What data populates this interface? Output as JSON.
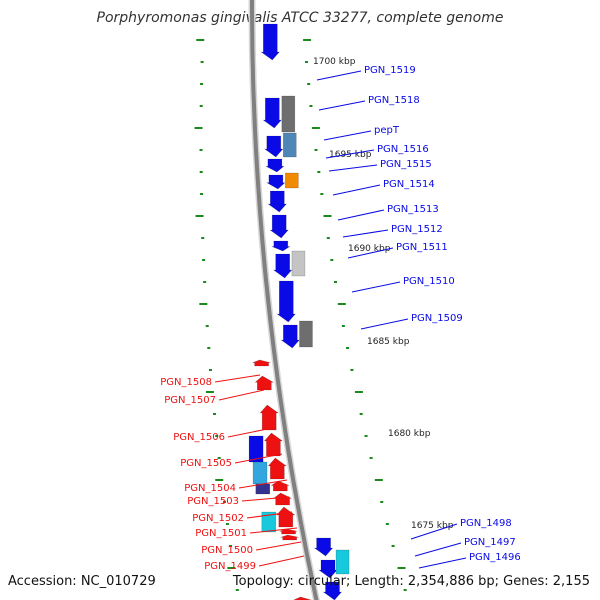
{
  "title": "Porphyromonas gingivalis ATCC 33277, complete genome",
  "footer": {
    "accession": "Accession: NC_010729",
    "summary": "Topology: circular; Length: 2,354,886 bp; Genes: 2,155"
  },
  "colors": {
    "forward": "#0a0ae6",
    "reverse": "#ee1111",
    "backbone": "#808080",
    "tick": "#1a8a1a",
    "gray": "#6e6e6e",
    "lightgray": "#c4c4c4",
    "steel": "#4f86b8",
    "orange": "#f28a00",
    "cyan": "#18c8dc",
    "skyblue": "#33a6e0",
    "navy": "#33338f"
  },
  "scale_labels": [
    "1700 kbp",
    "1695 kbp",
    "1690 kbp",
    "1685 kbp",
    "1680 kbp",
    "1675 kbp"
  ],
  "forward_genes": [
    {
      "label": "PGN_1519"
    },
    {
      "label": "PGN_1518"
    },
    {
      "label": "pepT"
    },
    {
      "label": "PGN_1516"
    },
    {
      "label": "PGN_1515"
    },
    {
      "label": "PGN_1514"
    },
    {
      "label": "PGN_1513"
    },
    {
      "label": "PGN_1512"
    },
    {
      "label": "PGN_1511"
    },
    {
      "label": "PGN_1510"
    },
    {
      "label": "PGN_1509"
    },
    {
      "label": "PGN_1498"
    },
    {
      "label": "PGN_1497"
    },
    {
      "label": "PGN_1496"
    }
  ],
  "reverse_genes": [
    {
      "label": "PGN_1508"
    },
    {
      "label": "PGN_1507"
    },
    {
      "label": "PGN_1506"
    },
    {
      "label": "PGN_1505"
    },
    {
      "label": "PGN_1504"
    },
    {
      "label": "PGN_1503"
    },
    {
      "label": "PGN_1502"
    },
    {
      "label": "PGN_1501"
    },
    {
      "label": "PGN_1500"
    },
    {
      "label": "PGN_1499"
    }
  ]
}
